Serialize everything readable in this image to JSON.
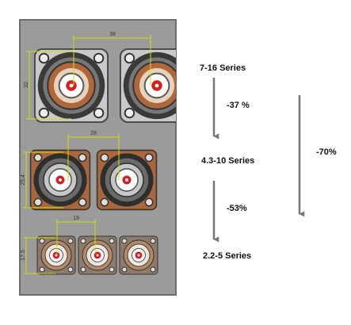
{
  "dimensions": {
    "top_width": "38",
    "top_height": "32",
    "middle_width": "28",
    "middle_height": "25.4",
    "bottom_width": "19",
    "bottom_height": "17.5"
  },
  "series": [
    "7-16 Series",
    "4.3-10 Series",
    "2.2-5 Series"
  ],
  "reductions": {
    "first": "-37 %",
    "second": "-53%",
    "total": "-70%"
  }
}
